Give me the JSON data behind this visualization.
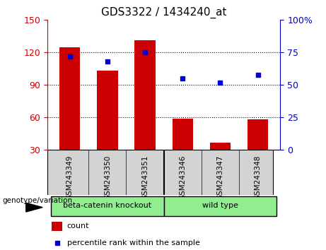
{
  "title": "GDS3322 / 1434240_at",
  "samples": [
    "GSM243349",
    "GSM243350",
    "GSM243351",
    "GSM243346",
    "GSM243347",
    "GSM243348"
  ],
  "counts": [
    125,
    103,
    131,
    59,
    37,
    58
  ],
  "percentile_ranks": [
    72,
    68,
    75,
    55,
    52,
    58
  ],
  "bar_color": "#cc0000",
  "dot_color": "#0000cc",
  "left_ylim": [
    30,
    150
  ],
  "left_yticks": [
    30,
    60,
    90,
    120,
    150
  ],
  "right_ylim": [
    0,
    100
  ],
  "right_yticks": [
    0,
    25,
    50,
    75,
    100
  ],
  "right_yticklabels": [
    "0",
    "25",
    "50",
    "75",
    "100%"
  ],
  "groups": [
    {
      "label": "beta-catenin knockout",
      "span": [
        0,
        2
      ]
    },
    {
      "label": "wild type",
      "span": [
        3,
        5
      ]
    }
  ],
  "group_label_prefix": "genotype/variation",
  "legend_count_label": "count",
  "legend_pct_label": "percentile rank within the sample",
  "bar_color_left_axis": "#cc0000",
  "right_axis_color": "#0000cc",
  "sample_box_color": "#d3d3d3",
  "group_box_color": "#90ee90"
}
